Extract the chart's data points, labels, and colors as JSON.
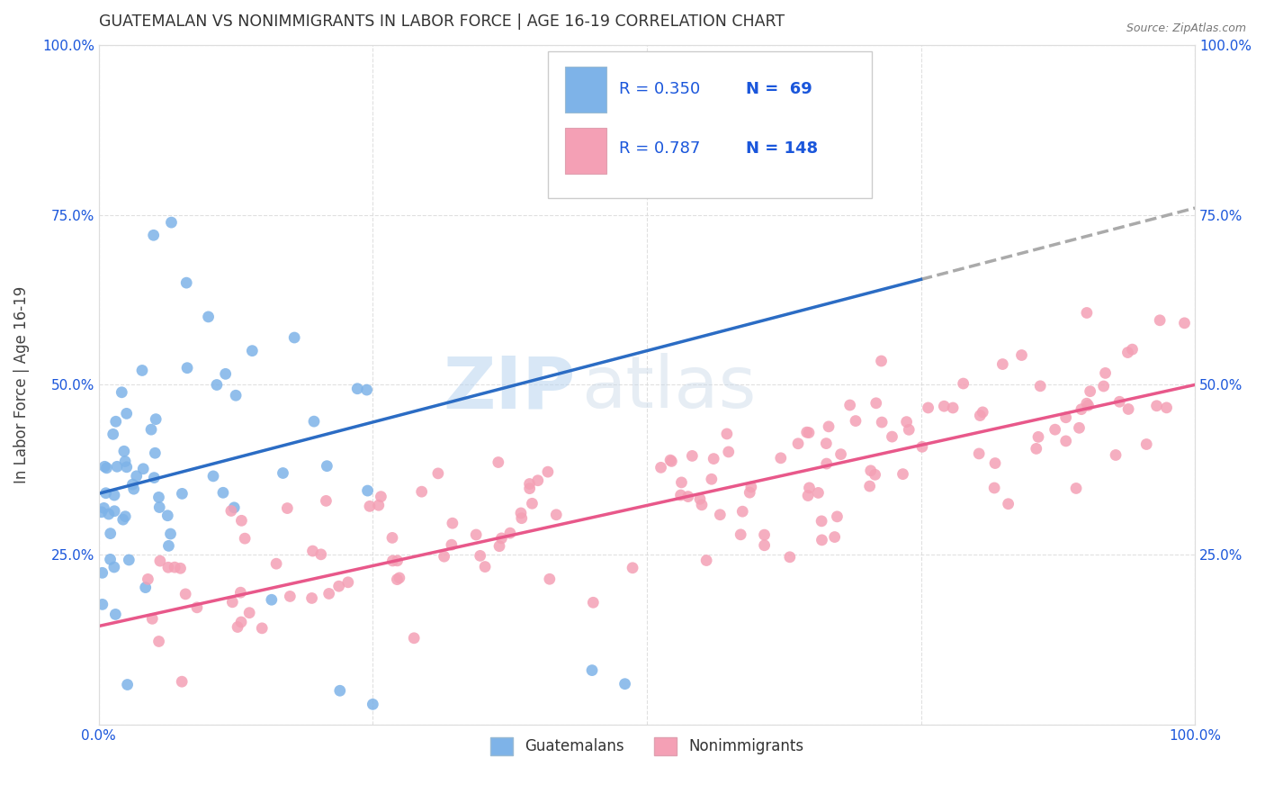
{
  "title": "GUATEMALAN VS NONIMMIGRANTS IN LABOR FORCE | AGE 16-19 CORRELATION CHART",
  "source": "Source: ZipAtlas.com",
  "ylabel": "In Labor Force | Age 16-19",
  "legend_r1": "R = 0.350",
  "legend_n1": "N =  69",
  "legend_r2": "R = 0.787",
  "legend_n2": "N = 148",
  "guatemalan_color": "#7eb3e8",
  "nonimmigrant_color": "#f4a0b5",
  "trendline_guatemalan_color": "#2b6cc4",
  "trendline_nonimmigrant_color": "#e8588a",
  "trendline_dashed_color": "#aaaaaa",
  "watermark_zip": "ZIP",
  "watermark_atlas": "atlas",
  "background_color": "#ffffff",
  "grid_color": "#dddddd",
  "legend_text_color": "#1a56db",
  "axis_label_color": "#1a56db",
  "guatemalan_intercept": 0.34,
  "guatemalan_slope": 0.42,
  "nonimmigrant_intercept": 0.145,
  "nonimmigrant_slope": 0.355
}
